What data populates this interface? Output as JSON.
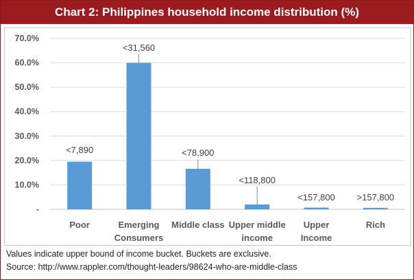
{
  "chart_data": {
    "type": "bar",
    "title": "Chart 2: Philippines household income distribution (%)",
    "categories": [
      "Poor",
      "Emerging Consumers",
      "Middle class",
      "Upper middle income",
      "Upper Income",
      "Rich"
    ],
    "category_lines": [
      [
        "Poor"
      ],
      [
        "Emerging",
        "Consumers"
      ],
      [
        "Middle class"
      ],
      [
        "Upper middle",
        "income"
      ],
      [
        "Upper",
        "Income"
      ],
      [
        "Rich"
      ]
    ],
    "values": [
      19.5,
      60.0,
      16.6,
      2.0,
      0.7,
      0.6
    ],
    "data_labels": [
      "<7,890",
      "<31,560",
      "<78,900",
      "<118,800",
      "<157,800",
      ">157,800"
    ],
    "ylim": [
      0,
      70
    ],
    "yticks": [
      "-",
      "10.0%",
      "20.0%",
      "30.0%",
      "40.0%",
      "50.0%",
      "60.0%",
      "70.0%"
    ],
    "grid": "horizontal",
    "legend": "none",
    "bar_color": "#5b9bd5",
    "title_color": "#9b1b1f"
  },
  "footnotes": [
    "Values indicate upper bound of income bucket. Buckets are exclusive.",
    "Source: http://www.rappler.com/thought-leaders/98624-who-are-middle-class"
  ]
}
